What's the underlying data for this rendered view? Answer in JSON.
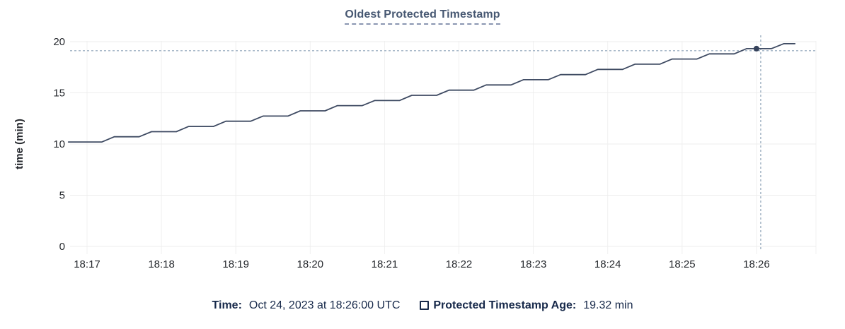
{
  "legend": {
    "time_label": "Time:",
    "time_value": "Oct 24, 2023 at 18:26:00 UTC",
    "series_label": "Protected Timestamp Age:",
    "series_value": "19.32 min"
  },
  "colors": {
    "series_line": "#3e4a62",
    "hover_dot": "#36425b",
    "crosshair": "#9fb0c2",
    "grid_horizontal": "#ededed",
    "grid_vertical": "#f0f0f0",
    "title": "#475872",
    "legend_text": "#17294a",
    "tick_text": "#26292e"
  },
  "chart_data": {
    "type": "line",
    "line_style": "step",
    "title": "Oldest Protected Timestamp",
    "xlabel": "",
    "ylabel": "time (min)",
    "ylim": [
      0,
      20
    ],
    "yticks": [
      0,
      5,
      10,
      15,
      20
    ],
    "xtick_labels": [
      "18:17",
      "18:18",
      "18:19",
      "18:20",
      "18:21",
      "18:22",
      "18:23",
      "18:24",
      "18:25",
      "18:26"
    ],
    "xtick_seconds": [
      0,
      60,
      120,
      180,
      240,
      300,
      360,
      420,
      480,
      540
    ],
    "grid": true,
    "legend_position": "bottom",
    "series": [
      {
        "name": "Protected Timestamp Age",
        "units": "min",
        "points_time_seconds_after_18_17_and_minutes": [
          [
            -15,
            10.2
          ],
          [
            12,
            10.2
          ],
          [
            22,
            10.71
          ],
          [
            42,
            10.71
          ],
          [
            52,
            11.21
          ],
          [
            72,
            11.21
          ],
          [
            82,
            11.72
          ],
          [
            102,
            11.72
          ],
          [
            112,
            12.23
          ],
          [
            132,
            12.23
          ],
          [
            142,
            12.73
          ],
          [
            162,
            12.73
          ],
          [
            172,
            13.24
          ],
          [
            192,
            13.24
          ],
          [
            202,
            13.75
          ],
          [
            222,
            13.75
          ],
          [
            232,
            14.25
          ],
          [
            252,
            14.25
          ],
          [
            262,
            14.76
          ],
          [
            282,
            14.76
          ],
          [
            292,
            15.26
          ],
          [
            312,
            15.26
          ],
          [
            322,
            15.77
          ],
          [
            342,
            15.77
          ],
          [
            352,
            16.28
          ],
          [
            372,
            16.28
          ],
          [
            382,
            16.78
          ],
          [
            402,
            16.78
          ],
          [
            412,
            17.29
          ],
          [
            432,
            17.29
          ],
          [
            442,
            17.8
          ],
          [
            462,
            17.8
          ],
          [
            472,
            18.3
          ],
          [
            492,
            18.3
          ],
          [
            502,
            18.81
          ],
          [
            522,
            18.81
          ],
          [
            532,
            19.32
          ],
          [
            552,
            19.32
          ],
          [
            562,
            19.8
          ],
          [
            571,
            19.8
          ]
        ]
      }
    ],
    "hover": {
      "time_seconds_after_18_17": 540,
      "time_label": "Oct 24, 2023 at 18:26:00 UTC",
      "value": 19.32,
      "value_label": "19.32 min",
      "series": "Protected Timestamp Age"
    }
  }
}
